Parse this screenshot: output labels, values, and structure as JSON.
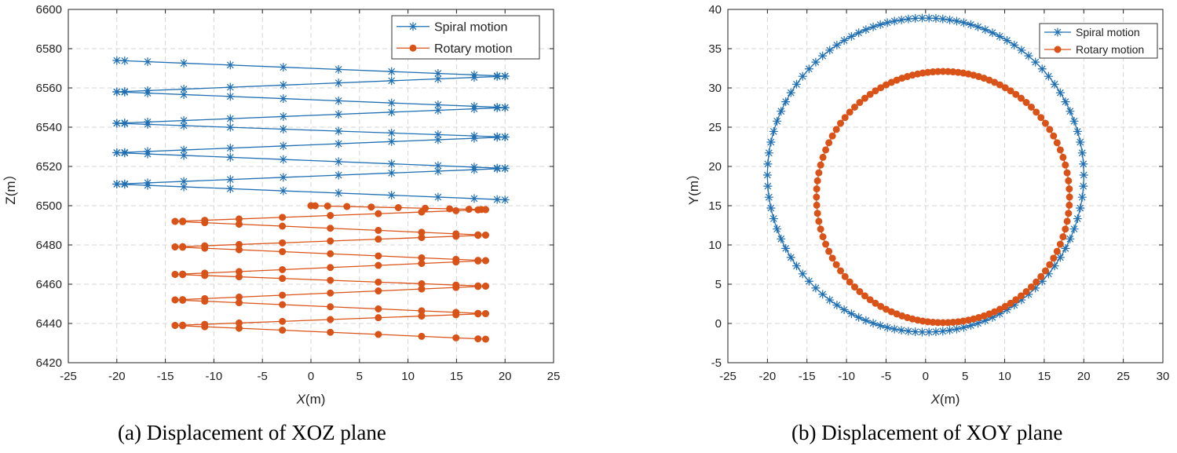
{
  "colors": {
    "spiral": "#1f6fb2",
    "rotary": "#d95319",
    "grid": "#d4d4d4",
    "axis": "#222222"
  },
  "captions": {
    "a": "(a)  Displacement of XOZ plane",
    "b": "(b)  Displacement of XOY plane"
  },
  "chart_data": [
    {
      "type": "line",
      "id": "xoz",
      "title": "",
      "xlabel_italic": "X",
      "xlabel_rest": "(m)",
      "ylabel": "Z(m）",
      "xlim": [
        -25,
        25
      ],
      "ylim": [
        6420,
        6600
      ],
      "xticks": [
        -25,
        -20,
        -15,
        -10,
        -5,
        0,
        5,
        10,
        15,
        20,
        25
      ],
      "yticks": [
        6420,
        6440,
        6460,
        6480,
        6500,
        6520,
        6540,
        6560,
        6580,
        6600
      ],
      "grid": true,
      "legend_position": "top-right",
      "series": [
        {
          "name": "Spiral motion",
          "marker": "asterisk",
          "color": "#1f6fb2",
          "path": [
            [
              -20,
              6574
            ],
            [
              20,
              6566
            ],
            [
              -20,
              6558
            ],
            [
              20,
              6550
            ],
            [
              -20,
              6542
            ],
            [
              20,
              6535
            ],
            [
              -20,
              6527
            ],
            [
              20,
              6519
            ],
            [
              -20,
              6511
            ],
            [
              20,
              6503
            ]
          ],
          "markers_per_segment": 12
        },
        {
          "name": "Rotary motion",
          "marker": "circle",
          "color": "#d95319",
          "path": [
            [
              0,
              6500
            ],
            [
              18,
              6498
            ],
            [
              -14,
              6492
            ],
            [
              18,
              6485
            ],
            [
              -14,
              6479
            ],
            [
              18,
              6472
            ],
            [
              -14,
              6465
            ],
            [
              18,
              6459
            ],
            [
              -14,
              6452
            ],
            [
              18,
              6445
            ],
            [
              -14,
              6439
            ],
            [
              18,
              6432
            ]
          ],
          "markers_per_segment": 11
        }
      ]
    },
    {
      "type": "line",
      "id": "xoy",
      "title": "",
      "xlabel_italic": "X",
      "xlabel_rest": "(m)",
      "ylabel": "Y(m）",
      "xlim": [
        -25,
        30
      ],
      "ylim": [
        -5,
        40
      ],
      "xticks": [
        -25,
        -20,
        -15,
        -10,
        -5,
        0,
        5,
        10,
        15,
        20,
        25,
        30
      ],
      "yticks": [
        -5,
        0,
        5,
        10,
        15,
        20,
        25,
        30,
        35,
        40
      ],
      "grid": true,
      "legend_position": "top-right",
      "series": [
        {
          "name": "Spiral motion",
          "marker": "asterisk",
          "color": "#1f6fb2",
          "circle": {
            "cx": 0,
            "cy": 18.9,
            "r": 20
          },
          "marker_count": 110
        },
        {
          "name": "Rotary motion",
          "marker": "circle",
          "color": "#d95319",
          "circle": {
            "cx": 2.2,
            "cy": 16.1,
            "r": 16
          },
          "marker_count": 120
        }
      ]
    }
  ]
}
